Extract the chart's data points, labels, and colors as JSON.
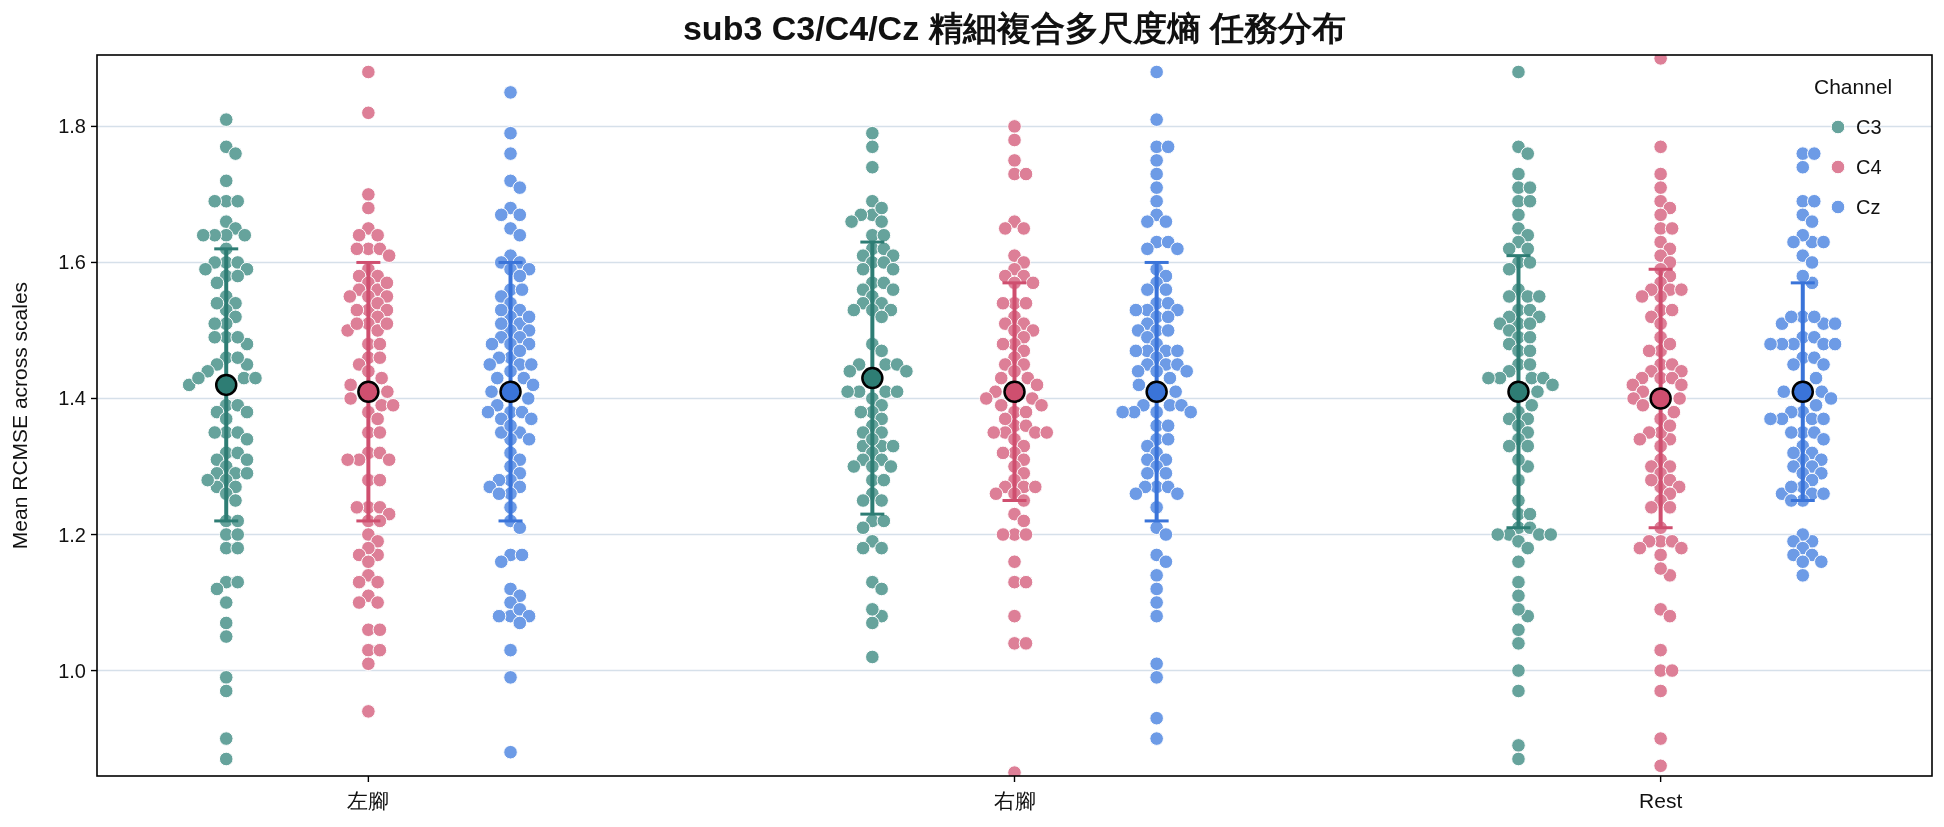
{
  "chart_data": {
    "type": "scatter",
    "title": "sub3 C3/C4/Cz 精細複合多尺度熵 任務分布",
    "ylabel": "Mean RCMSE across scales",
    "legend_title": "Channel",
    "legend": "top right",
    "grid": "y",
    "marker": "circle",
    "categories": [
      "左腳",
      "右腳",
      "Rest"
    ],
    "ylim": [
      0.845,
      1.905
    ],
    "yticks": [
      {
        "value": 1.0,
        "label": "1.0"
      },
      {
        "value": 1.2,
        "label": "1.2"
      },
      {
        "value": 1.4,
        "label": "1.4"
      },
      {
        "value": 1.6,
        "label": "1.6"
      },
      {
        "value": 1.8,
        "label": "1.8"
      }
    ],
    "series": [
      {
        "name": "C3",
        "color": "#66a39c",
        "x": [
          "左腳",
          "左腳",
          "左腳",
          "左腳",
          "左腳",
          "左腳",
          "左腳",
          "左腳",
          "左腳",
          "左腳",
          "左腳",
          "左腳",
          "左腳",
          "左腳",
          "左腳",
          "左腳",
          "左腳",
          "左腳",
          "左腳",
          "左腳",
          "左腳",
          "左腳",
          "左腳",
          "左腳",
          "左腳",
          "左腳",
          "左腳",
          "左腳",
          "左腳",
          "左腳",
          "左腳",
          "左腳",
          "左腳",
          "左腳",
          "左腳",
          "左腳",
          "左腳",
          "左腳",
          "左腳",
          "左腳",
          "左腳",
          "左腳",
          "左腳",
          "左腳",
          "左腳",
          "左腳",
          "左腳",
          "左腳",
          "左腳",
          "左腳",
          "左腳",
          "左腳",
          "左腳",
          "左腳",
          "左腳",
          "左腳",
          "左腳",
          "左腳",
          "左腳",
          "左腳",
          "左腳",
          "左腳",
          "左腳",
          "左腳",
          "左腳",
          "左腳",
          "左腳",
          "左腳",
          "左腳",
          "左腳",
          "左腳",
          "左腳",
          "左腳",
          "左腳",
          "左腳",
          "左腳",
          "左腳",
          "左腳",
          "左腳",
          "左腳",
          "左腳",
          "右腳",
          "右腳",
          "右腳",
          "右腳",
          "右腳",
          "右腳",
          "右腳",
          "右腳",
          "右腳",
          "右腳",
          "右腳",
          "右腳",
          "右腳",
          "右腳",
          "右腳",
          "右腳",
          "右腳",
          "右腳",
          "右腳",
          "右腳",
          "右腳",
          "右腳",
          "右腳",
          "右腳",
          "右腳",
          "右腳",
          "右腳",
          "右腳",
          "右腳",
          "右腳",
          "右腳",
          "右腳",
          "右腳",
          "右腳",
          "右腳",
          "右腳",
          "右腳",
          "右腳",
          "右腳",
          "右腳",
          "右腳",
          "右腳",
          "右腳",
          "右腳",
          "右腳",
          "右腳",
          "右腳",
          "右腳",
          "右腳",
          "右腳",
          "右腳",
          "右腳",
          "右腳",
          "右腳",
          "右腳",
          "右腳",
          "右腳",
          "右腳",
          "右腳",
          "右腳",
          "右腳",
          "右腳",
          "右腳",
          "右腳",
          "右腳",
          "右腳",
          "右腳",
          "右腳",
          "右腳",
          "右腳",
          "右腳",
          "右腳",
          "右腳",
          "右腳",
          "右腳",
          "右腳",
          "Rest",
          "Rest",
          "Rest",
          "Rest",
          "Rest",
          "Rest",
          "Rest",
          "Rest",
          "Rest",
          "Rest",
          "Rest",
          "Rest",
          "Rest",
          "Rest",
          "Rest",
          "Rest",
          "Rest",
          "Rest",
          "Rest",
          "Rest",
          "Rest",
          "Rest",
          "Rest",
          "Rest",
          "Rest",
          "Rest",
          "Rest",
          "Rest",
          "Rest",
          "Rest",
          "Rest",
          "Rest",
          "Rest",
          "Rest",
          "Rest",
          "Rest",
          "Rest",
          "Rest",
          "Rest",
          "Rest",
          "Rest",
          "Rest",
          "Rest",
          "Rest",
          "Rest",
          "Rest",
          "Rest",
          "Rest",
          "Rest",
          "Rest",
          "Rest",
          "Rest",
          "Rest",
          "Rest",
          "Rest",
          "Rest",
          "Rest",
          "Rest",
          "Rest",
          "Rest",
          "Rest",
          "Rest",
          "Rest",
          "Rest",
          "Rest",
          "Rest",
          "Rest",
          "Rest",
          "Rest",
          "Rest",
          "Rest",
          "Rest",
          "Rest",
          "Rest",
          "Rest",
          "Rest",
          "Rest"
        ],
        "values": [
          1.81,
          1.77,
          1.76,
          1.72,
          1.69,
          1.69,
          1.69,
          1.66,
          1.65,
          1.64,
          1.64,
          1.64,
          1.64,
          1.62,
          1.6,
          1.6,
          1.6,
          1.59,
          1.59,
          1.58,
          1.58,
          1.57,
          1.55,
          1.54,
          1.53,
          1.54,
          1.52,
          1.51,
          1.51,
          1.49,
          1.48,
          1.49,
          1.49,
          1.46,
          1.45,
          1.45,
          1.46,
          1.43,
          1.42,
          1.44,
          1.43,
          1.43,
          1.39,
          1.39,
          1.38,
          1.37,
          1.38,
          1.35,
          1.35,
          1.34,
          1.35,
          1.32,
          1.32,
          1.31,
          1.31,
          1.3,
          1.29,
          1.29,
          1.29,
          1.28,
          1.27,
          1.28,
          1.27,
          1.26,
          1.25,
          1.22,
          1.22,
          1.2,
          1.2,
          1.18,
          1.18,
          1.13,
          1.13,
          1.12,
          1.1,
          1.07,
          1.05,
          0.99,
          0.97,
          0.9,
          0.87,
          1.79,
          1.77,
          1.74,
          1.69,
          1.67,
          1.67,
          1.68,
          1.66,
          1.66,
          1.64,
          1.64,
          1.62,
          1.62,
          1.61,
          1.61,
          1.6,
          1.6,
          1.59,
          1.59,
          1.57,
          1.57,
          1.56,
          1.56,
          1.55,
          1.54,
          1.54,
          1.53,
          1.53,
          1.53,
          1.52,
          1.48,
          1.47,
          1.45,
          1.45,
          1.44,
          1.45,
          1.44,
          1.41,
          1.41,
          1.41,
          1.41,
          1.4,
          1.39,
          1.38,
          1.38,
          1.37,
          1.36,
          1.35,
          1.35,
          1.33,
          1.33,
          1.34,
          1.33,
          1.32,
          1.31,
          1.31,
          1.3,
          1.3,
          1.3,
          1.28,
          1.28,
          1.26,
          1.25,
          1.25,
          1.22,
          1.22,
          1.21,
          1.19,
          1.18,
          1.18,
          1.13,
          1.12,
          1.08,
          1.07,
          1.09,
          1.02,
          1.88,
          1.77,
          1.76,
          1.73,
          1.71,
          1.71,
          1.69,
          1.69,
          1.67,
          1.65,
          1.64,
          1.63,
          1.62,
          1.62,
          1.6,
          1.6,
          1.59,
          1.56,
          1.55,
          1.55,
          1.55,
          1.53,
          1.53,
          1.51,
          1.52,
          1.52,
          1.51,
          1.51,
          1.5,
          1.49,
          1.49,
          1.48,
          1.47,
          1.47,
          1.45,
          1.45,
          1.44,
          1.43,
          1.43,
          1.43,
          1.43,
          1.41,
          1.42,
          1.39,
          1.38,
          1.37,
          1.37,
          1.36,
          1.35,
          1.34,
          1.33,
          1.33,
          1.3,
          1.31,
          1.28,
          1.25,
          1.23,
          1.23,
          1.21,
          1.21,
          1.2,
          1.2,
          1.2,
          1.19,
          1.2,
          1.18,
          1.16,
          1.13,
          1.11,
          1.08,
          1.09,
          1.06,
          1.04,
          1.0,
          0.97,
          0.89,
          0.87
        ]
      },
      {
        "name": "C4",
        "color": "#dd7f97",
        "x": [
          "左腳",
          "左腳",
          "左腳",
          "左腳",
          "左腳",
          "左腳",
          "左腳",
          "左腳",
          "左腳",
          "左腳",
          "左腳",
          "左腳",
          "左腳",
          "左腳",
          "左腳",
          "左腳",
          "左腳",
          "左腳",
          "左腳",
          "左腳",
          "左腳",
          "左腳",
          "左腳",
          "左腳",
          "左腳",
          "左腳",
          "左腳",
          "左腳",
          "左腳",
          "左腳",
          "左腳",
          "左腳",
          "左腳",
          "左腳",
          "左腳",
          "左腳",
          "左腳",
          "左腳",
          "左腳",
          "左腳",
          "左腳",
          "左腳",
          "左腳",
          "左腳",
          "左腳",
          "左腳",
          "左腳",
          "左腳",
          "左腳",
          "左腳",
          "左腳",
          "左腳",
          "左腳",
          "左腳",
          "左腳",
          "左腳",
          "左腳",
          "左腳",
          "左腳",
          "左腳",
          "左腳",
          "左腳",
          "左腳",
          "左腳",
          "左腳",
          "左腳",
          "左腳",
          "左腳",
          "左腳",
          "左腳",
          "左腳",
          "左腳",
          "左腳",
          "左腳",
          "左腳",
          "左腳",
          "左腳",
          "左腳",
          "右腳",
          "右腳",
          "右腳",
          "右腳",
          "右腳",
          "右腳",
          "右腳",
          "右腳",
          "右腳",
          "右腳",
          "右腳",
          "右腳",
          "右腳",
          "右腳",
          "右腳",
          "右腳",
          "右腳",
          "右腳",
          "右腳",
          "右腳",
          "右腳",
          "右腳",
          "右腳",
          "右腳",
          "右腳",
          "右腳",
          "右腳",
          "右腳",
          "右腳",
          "右腳",
          "右腳",
          "右腳",
          "右腳",
          "右腳",
          "右腳",
          "右腳",
          "右腳",
          "右腳",
          "右腳",
          "右腳",
          "右腳",
          "右腳",
          "右腳",
          "右腳",
          "右腳",
          "右腳",
          "右腳",
          "右腳",
          "右腳",
          "右腳",
          "右腳",
          "右腳",
          "右腳",
          "右腳",
          "右腳",
          "右腳",
          "右腳",
          "右腳",
          "右腳",
          "右腳",
          "右腳",
          "右腳",
          "右腳",
          "右腳",
          "右腳",
          "右腳",
          "右腳",
          "右腳",
          "右腳",
          "右腳",
          "右腳",
          "右腳",
          "右腳",
          "右腳",
          "Rest",
          "Rest",
          "Rest",
          "Rest",
          "Rest",
          "Rest",
          "Rest",
          "Rest",
          "Rest",
          "Rest",
          "Rest",
          "Rest",
          "Rest",
          "Rest",
          "Rest",
          "Rest",
          "Rest",
          "Rest",
          "Rest",
          "Rest",
          "Rest",
          "Rest",
          "Rest",
          "Rest",
          "Rest",
          "Rest",
          "Rest",
          "Rest",
          "Rest",
          "Rest",
          "Rest",
          "Rest",
          "Rest",
          "Rest",
          "Rest",
          "Rest",
          "Rest",
          "Rest",
          "Rest",
          "Rest",
          "Rest",
          "Rest",
          "Rest",
          "Rest",
          "Rest",
          "Rest",
          "Rest",
          "Rest",
          "Rest",
          "Rest",
          "Rest",
          "Rest",
          "Rest",
          "Rest",
          "Rest",
          "Rest",
          "Rest",
          "Rest",
          "Rest",
          "Rest",
          "Rest",
          "Rest",
          "Rest",
          "Rest",
          "Rest",
          "Rest",
          "Rest",
          "Rest",
          "Rest",
          "Rest",
          "Rest",
          "Rest",
          "Rest",
          "Rest",
          "Rest",
          "Rest",
          "Rest",
          "Rest",
          "Rest"
        ],
        "values": [
          1.88,
          1.82,
          1.7,
          1.68,
          1.65,
          1.64,
          1.64,
          1.62,
          1.62,
          1.62,
          1.61,
          1.59,
          1.58,
          1.58,
          1.57,
          1.56,
          1.56,
          1.57,
          1.55,
          1.55,
          1.55,
          1.53,
          1.54,
          1.53,
          1.53,
          1.52,
          1.51,
          1.5,
          1.5,
          1.51,
          1.51,
          1.48,
          1.48,
          1.46,
          1.46,
          1.45,
          1.44,
          1.43,
          1.42,
          1.41,
          1.4,
          1.39,
          1.39,
          1.38,
          1.37,
          1.35,
          1.35,
          1.32,
          1.32,
          1.31,
          1.31,
          1.31,
          1.28,
          1.28,
          1.24,
          1.24,
          1.24,
          1.23,
          1.22,
          1.22,
          1.2,
          1.19,
          1.17,
          1.18,
          1.17,
          1.16,
          1.14,
          1.13,
          1.13,
          1.11,
          1.1,
          1.1,
          1.06,
          1.06,
          1.03,
          1.03,
          1.01,
          0.94,
          1.8,
          1.78,
          1.75,
          1.73,
          1.73,
          1.66,
          1.65,
          1.65,
          1.61,
          1.6,
          1.59,
          1.58,
          1.58,
          1.57,
          1.57,
          1.54,
          1.54,
          1.54,
          1.52,
          1.51,
          1.51,
          1.5,
          1.5,
          1.49,
          1.48,
          1.48,
          1.47,
          1.46,
          1.45,
          1.45,
          1.43,
          1.44,
          1.43,
          1.42,
          1.41,
          1.4,
          1.4,
          1.39,
          1.39,
          1.38,
          1.38,
          1.36,
          1.36,
          1.35,
          1.37,
          1.35,
          1.35,
          1.35,
          1.34,
          1.33,
          1.32,
          1.32,
          1.31,
          1.3,
          1.29,
          1.28,
          1.27,
          1.27,
          1.27,
          1.26,
          1.25,
          1.26,
          1.23,
          1.22,
          1.2,
          1.2,
          1.2,
          1.16,
          1.13,
          1.13,
          1.08,
          1.04,
          1.04,
          0.85,
          1.9,
          1.77,
          1.73,
          1.71,
          1.69,
          1.68,
          1.67,
          1.65,
          1.65,
          1.63,
          1.62,
          1.61,
          1.6,
          1.59,
          1.58,
          1.57,
          1.56,
          1.55,
          1.56,
          1.56,
          1.55,
          1.53,
          1.53,
          1.52,
          1.51,
          1.49,
          1.47,
          1.48,
          1.47,
          1.45,
          1.45,
          1.44,
          1.44,
          1.43,
          1.43,
          1.43,
          1.42,
          1.42,
          1.41,
          1.4,
          1.4,
          1.39,
          1.37,
          1.38,
          1.34,
          1.35,
          1.36,
          1.35,
          1.34,
          1.33,
          1.31,
          1.3,
          1.3,
          1.29,
          1.27,
          1.28,
          1.28,
          1.27,
          1.26,
          1.25,
          1.24,
          1.24,
          1.21,
          1.19,
          1.19,
          1.19,
          1.18,
          1.17,
          1.18,
          1.14,
          1.15,
          1.09,
          1.08,
          1.03,
          1.0,
          1.0,
          0.97,
          0.9,
          0.86
        ]
      },
      {
        "name": "Cz",
        "color": "#6d9be6",
        "x": [
          "左腳",
          "左腳",
          "左腳",
          "左腳",
          "左腳",
          "左腳",
          "左腳",
          "左腳",
          "左腳",
          "左腳",
          "左腳",
          "左腳",
          "左腳",
          "左腳",
          "左腳",
          "左腳",
          "左腳",
          "左腳",
          "左腳",
          "左腳",
          "左腳",
          "左腳",
          "左腳",
          "左腳",
          "左腳",
          "左腳",
          "左腳",
          "左腳",
          "左腳",
          "左腳",
          "左腳",
          "左腳",
          "左腳",
          "左腳",
          "左腳",
          "左腳",
          "左腳",
          "左腳",
          "左腳",
          "左腳",
          "左腳",
          "左腳",
          "左腳",
          "左腳",
          "左腳",
          "左腳",
          "左腳",
          "左腳",
          "左腳",
          "左腳",
          "左腳",
          "左腳",
          "左腳",
          "左腳",
          "左腳",
          "左腳",
          "左腳",
          "左腳",
          "左腳",
          "左腳",
          "左腳",
          "左腳",
          "左腳",
          "左腳",
          "左腳",
          "左腳",
          "左腳",
          "左腳",
          "左腳",
          "左腳",
          "左腳",
          "左腳",
          "左腳",
          "左腳",
          "左腳",
          "左腳",
          "左腳",
          "左腳",
          "左腳",
          "左腳",
          "左腳",
          "左腳",
          "左腳",
          "右腳",
          "右腳",
          "右腳",
          "右腳",
          "右腳",
          "右腳",
          "右腳",
          "右腳",
          "右腳",
          "右腳",
          "右腳",
          "右腳",
          "右腳",
          "右腳",
          "右腳",
          "右腳",
          "右腳",
          "右腳",
          "右腳",
          "右腳",
          "右腳",
          "右腳",
          "右腳",
          "右腳",
          "右腳",
          "右腳",
          "右腳",
          "右腳",
          "右腳",
          "右腳",
          "右腳",
          "右腳",
          "右腳",
          "右腳",
          "右腳",
          "右腳",
          "右腳",
          "右腳",
          "右腳",
          "右腳",
          "右腳",
          "右腳",
          "右腳",
          "右腳",
          "右腳",
          "右腳",
          "右腳",
          "右腳",
          "右腳",
          "右腳",
          "右腳",
          "右腳",
          "右腳",
          "右腳",
          "右腳",
          "右腳",
          "右腳",
          "右腳",
          "右腳",
          "右腳",
          "右腳",
          "右腳",
          "右腳",
          "右腳",
          "右腳",
          "右腳",
          "右腳",
          "右腳",
          "右腳",
          "右腳",
          "右腳",
          "右腳",
          "右腳",
          "右腳",
          "右腳",
          "右腳",
          "右腳",
          "右腳",
          "右腳",
          "右腳",
          "右腳",
          "右腳",
          "右腳",
          "Rest",
          "Rest",
          "Rest",
          "Rest",
          "Rest",
          "Rest",
          "Rest",
          "Rest",
          "Rest",
          "Rest",
          "Rest",
          "Rest",
          "Rest",
          "Rest",
          "Rest",
          "Rest",
          "Rest",
          "Rest",
          "Rest",
          "Rest",
          "Rest",
          "Rest",
          "Rest",
          "Rest",
          "Rest",
          "Rest",
          "Rest",
          "Rest",
          "Rest",
          "Rest",
          "Rest",
          "Rest",
          "Rest",
          "Rest",
          "Rest",
          "Rest",
          "Rest",
          "Rest",
          "Rest",
          "Rest",
          "Rest",
          "Rest",
          "Rest",
          "Rest",
          "Rest",
          "Rest",
          "Rest",
          "Rest",
          "Rest",
          "Rest",
          "Rest",
          "Rest",
          "Rest",
          "Rest",
          "Rest",
          "Rest",
          "Rest",
          "Rest",
          "Rest",
          "Rest",
          "Rest",
          "Rest",
          "Rest",
          "Rest",
          "Rest",
          "Rest",
          "Rest",
          "Rest",
          "Rest",
          "Rest",
          "Rest",
          "Rest",
          "Rest"
        ],
        "values": [
          1.85,
          1.79,
          1.76,
          1.72,
          1.71,
          1.68,
          1.67,
          1.67,
          1.65,
          1.64,
          1.61,
          1.6,
          1.6,
          1.59,
          1.59,
          1.58,
          1.56,
          1.56,
          1.55,
          1.54,
          1.53,
          1.52,
          1.51,
          1.53,
          1.52,
          1.5,
          1.51,
          1.5,
          1.49,
          1.49,
          1.48,
          1.48,
          1.48,
          1.46,
          1.46,
          1.47,
          1.45,
          1.45,
          1.45,
          1.44,
          1.43,
          1.43,
          1.42,
          1.41,
          1.4,
          1.39,
          1.38,
          1.38,
          1.38,
          1.37,
          1.35,
          1.37,
          1.34,
          1.35,
          1.36,
          1.34,
          1.32,
          1.31,
          1.3,
          1.29,
          1.28,
          1.28,
          1.27,
          1.27,
          1.26,
          1.26,
          1.24,
          1.22,
          1.21,
          1.17,
          1.17,
          1.16,
          1.12,
          1.11,
          1.1,
          1.08,
          1.08,
          1.09,
          1.08,
          1.07,
          1.03,
          0.99,
          0.88,
          1.88,
          1.81,
          1.77,
          1.77,
          1.75,
          1.73,
          1.71,
          1.69,
          1.67,
          1.66,
          1.66,
          1.63,
          1.63,
          1.62,
          1.62,
          1.59,
          1.58,
          1.57,
          1.56,
          1.56,
          1.54,
          1.54,
          1.53,
          1.53,
          1.53,
          1.52,
          1.51,
          1.52,
          1.5,
          1.5,
          1.5,
          1.49,
          1.48,
          1.47,
          1.47,
          1.47,
          1.47,
          1.46,
          1.45,
          1.45,
          1.45,
          1.44,
          1.44,
          1.42,
          1.43,
          1.44,
          1.41,
          1.39,
          1.38,
          1.39,
          1.38,
          1.38,
          1.39,
          1.36,
          1.36,
          1.38,
          1.34,
          1.34,
          1.33,
          1.32,
          1.31,
          1.31,
          1.3,
          1.29,
          1.29,
          1.27,
          1.27,
          1.27,
          1.26,
          1.24,
          1.26,
          1.21,
          1.2,
          1.17,
          1.16,
          1.14,
          1.12,
          1.1,
          1.08,
          1.01,
          0.99,
          0.93,
          0.9,
          1.76,
          1.76,
          1.74,
          1.69,
          1.69,
          1.67,
          1.66,
          1.63,
          1.64,
          1.63,
          1.63,
          1.61,
          1.6,
          1.57,
          1.58,
          1.51,
          1.51,
          1.52,
          1.52,
          1.52,
          1.51,
          1.49,
          1.49,
          1.48,
          1.48,
          1.48,
          1.48,
          1.48,
          1.46,
          1.46,
          1.45,
          1.45,
          1.43,
          1.41,
          1.41,
          1.4,
          1.38,
          1.37,
          1.39,
          1.38,
          1.37,
          1.37,
          1.37,
          1.35,
          1.35,
          1.35,
          1.34,
          1.33,
          1.32,
          1.31,
          1.32,
          1.31,
          1.3,
          1.3,
          1.29,
          1.29,
          1.28,
          1.27,
          1.26,
          1.26,
          1.26,
          1.27,
          1.25,
          1.25,
          1.19,
          1.2,
          1.19,
          1.18,
          1.17,
          1.17,
          1.16,
          1.16,
          1.14
        ]
      },
      {
        "color": "#2e7d74",
        "x": [
          "左腳",
          "右腳",
          "Rest"
        ],
        "values": [
          1.42,
          1.43,
          1.41
        ],
        "errors": [
          0.2,
          0.2,
          0.2
        ]
      },
      {
        "color": "#cf4f6f",
        "x": [
          "左腳",
          "右腳",
          "Rest"
        ],
        "values": [
          1.41,
          1.41,
          1.4
        ],
        "errors": [
          0.19,
          0.16,
          0.19
        ]
      },
      {
        "color": "#3a74d9",
        "x": [
          "左腳",
          "右腳",
          "Rest"
        ],
        "values": [
          1.41,
          1.41,
          1.41
        ],
        "errors": [
          0.19,
          0.19,
          0.16
        ]
      }
    ]
  }
}
